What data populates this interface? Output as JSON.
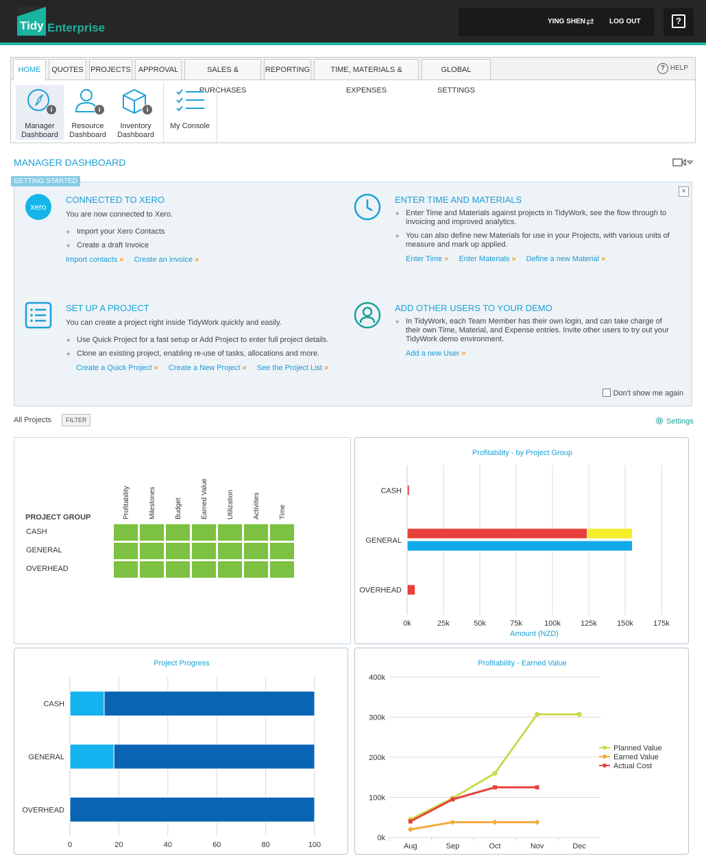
{
  "app": {
    "logo_tidy": "Tidy",
    "logo_enterprise": "Enterprise"
  },
  "user": {
    "name": "YING SHEN",
    "logout_label": "LOG OUT"
  },
  "nav": {
    "tabs": [
      {
        "label": "HOME"
      },
      {
        "label": "QUOTES"
      },
      {
        "label": "PROJECTS"
      },
      {
        "label": "APPROVAL"
      },
      {
        "label": "SALES & PURCHASES"
      },
      {
        "label": "REPORTING"
      },
      {
        "label": "TIME, MATERIALS & EXPENSES"
      },
      {
        "label": "GLOBAL SETTINGS"
      }
    ],
    "active_tab": "HOME",
    "help_label": "HELP",
    "ribbon": [
      {
        "line1": "Manager",
        "line2": "Dashboard"
      },
      {
        "line1": "Resource",
        "line2": "Dashboard"
      },
      {
        "line1": "Inventory",
        "line2": "Dashboard"
      },
      {
        "line1": "My Console",
        "line2": ""
      }
    ]
  },
  "section_title": "MANAGER DASHBOARD",
  "getting_started": {
    "tag": "GETTING STARTED",
    "xero": {
      "icon_text": "xero",
      "title": "CONNECTED TO XERO",
      "desc": "You are now connected to Xero.",
      "items": [
        "Import your Xero Contacts",
        "Create a draft Invoice"
      ],
      "links": [
        "Import contacts",
        "Create an invoice"
      ]
    },
    "time": {
      "title": "ENTER TIME AND MATERIALS",
      "items": [
        "Enter Time and Materials against projects in TidyWork, see the flow through to invoicing and improved analytics.",
        "You can also define new Materials for use in your Projects, with various units of measure and mark up applied."
      ],
      "links": [
        "Enter Time",
        "Enter Materials",
        "Define a new Material"
      ]
    },
    "project": {
      "title": "SET UP A PROJECT",
      "desc": "You can create a project right inside TidyWork quickly and easily.",
      "items": [
        "Use Quick Project for a fast setup or Add Project to enter full project details.",
        "Clone an existing project, enabling re-use of tasks, allocations and more."
      ],
      "links": [
        "Create a Quick Project",
        "Create a New Project",
        "See the Project List"
      ]
    },
    "users": {
      "title": "ADD OTHER USERS TO YOUR DEMO",
      "items": [
        "In TidyWork, each Team Member has their own login, and can take charge of their own Time, Material, and Expense entries. Invite other users to try out your TidyWork demo environment."
      ],
      "links": [
        "Add a new User"
      ]
    },
    "dont_show": "Don't show me again",
    "close": "×"
  },
  "filter": {
    "all_projects": "All Projects",
    "filter_label": "FILTER",
    "settings_label": "Settings"
  },
  "status_grid": {
    "header": "PROJECT GROUP",
    "columns": [
      "Profitability",
      "Milestones",
      "Budget",
      "Earned Value",
      "Utilization",
      "Activities",
      "Time"
    ],
    "rows": [
      "CASH",
      "GENERAL",
      "OVERHEAD"
    ],
    "cell_color": "#7cc142"
  },
  "colors": {
    "accent": "#1aa0d6",
    "brand": "#19b39f",
    "red": "#e8403a",
    "yellow": "#f5ee2a",
    "blue": "#12a9ea",
    "navy": "#0a64b4",
    "light_blue": "#14b2ee",
    "green_line": "#cbd94a",
    "orange_line": "#f2a93b"
  },
  "chart_data": [
    {
      "type": "bar",
      "orientation": "horizontal",
      "title": "Profitability - by Project Group",
      "xlabel": "Amount (NZD)",
      "categories": [
        "CASH",
        "GENERAL",
        "OVERHEAD"
      ],
      "x_ticks": [
        "0k",
        "25k",
        "50k",
        "75k",
        "100k",
        "125k",
        "150k",
        "175k"
      ],
      "xlim": [
        0,
        175000
      ],
      "series": [
        {
          "values": [
            1500,
            124000,
            5500
          ],
          "stack_extra": [
            0,
            31000,
            0
          ]
        },
        {
          "values": [
            0,
            155000,
            0
          ]
        }
      ]
    },
    {
      "type": "bar",
      "orientation": "horizontal",
      "stacked": true,
      "title": "Project Progress",
      "categories": [
        "CASH",
        "GENERAL",
        "OVERHEAD"
      ],
      "x_ticks": [
        "0",
        "20",
        "40",
        "60",
        "80",
        "100"
      ],
      "xlim": [
        0,
        100
      ],
      "series": [
        {
          "values": [
            14,
            18,
            0
          ]
        },
        {
          "values": [
            86,
            82,
            100
          ]
        }
      ]
    },
    {
      "type": "line",
      "title": "Profitability - Earned Value",
      "categories": [
        "Aug",
        "Sep",
        "Oct",
        "Nov",
        "Dec"
      ],
      "y_ticks": [
        "0k",
        "100k",
        "200k",
        "300k",
        "400k"
      ],
      "ylim": [
        0,
        400000
      ],
      "series": [
        {
          "name": "Planned Value",
          "values": [
            45000,
            98000,
            160000,
            307000,
            307000
          ]
        },
        {
          "name": "Earned Value",
          "values": [
            20000,
            38000,
            38000,
            38000,
            null
          ]
        },
        {
          "name": "Actual Cost",
          "values": [
            40000,
            95000,
            125000,
            125000,
            null
          ]
        }
      ]
    }
  ]
}
